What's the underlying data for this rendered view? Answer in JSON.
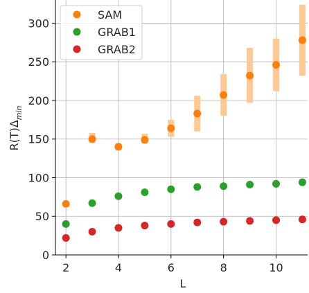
{
  "chart_data": {
    "type": "scatter",
    "title": "",
    "xlabel": "L",
    "ylabel_main": "R(T)Δ",
    "ylabel_sub": "min",
    "xlim": [
      1.6,
      11.2
    ],
    "ylim": [
      0,
      330
    ],
    "xticks": [
      2,
      4,
      6,
      8,
      10
    ],
    "yticks": [
      0,
      50,
      100,
      150,
      200,
      250,
      300
    ],
    "grid": true,
    "legend_position": "upper-left",
    "series": [
      {
        "name": "SAM",
        "color": "#ff7f0e",
        "errorbar_color": "#ffc895",
        "x": [
          2,
          3,
          4,
          5,
          6,
          7,
          8,
          9,
          10,
          11
        ],
        "y": [
          66,
          150,
          140,
          149,
          164,
          183,
          207,
          232,
          246,
          278
        ],
        "err_low": [
          0,
          5,
          4,
          5,
          11,
          23,
          27,
          35,
          34,
          46
        ],
        "err_high": [
          0,
          8,
          4,
          8,
          11,
          23,
          27,
          36,
          34,
          46
        ]
      },
      {
        "name": "GRAB1",
        "color": "#2ca02c",
        "x": [
          2,
          3,
          4,
          5,
          6,
          7,
          8,
          9,
          10,
          11
        ],
        "y": [
          40,
          67,
          76,
          81,
          85,
          88,
          89,
          91,
          92,
          94
        ]
      },
      {
        "name": "GRAB2",
        "color": "#d62728",
        "x": [
          2,
          3,
          4,
          5,
          6,
          7,
          8,
          9,
          10,
          11
        ],
        "y": [
          22,
          30,
          35,
          38,
          40,
          42,
          43,
          44,
          45,
          46
        ]
      }
    ]
  }
}
